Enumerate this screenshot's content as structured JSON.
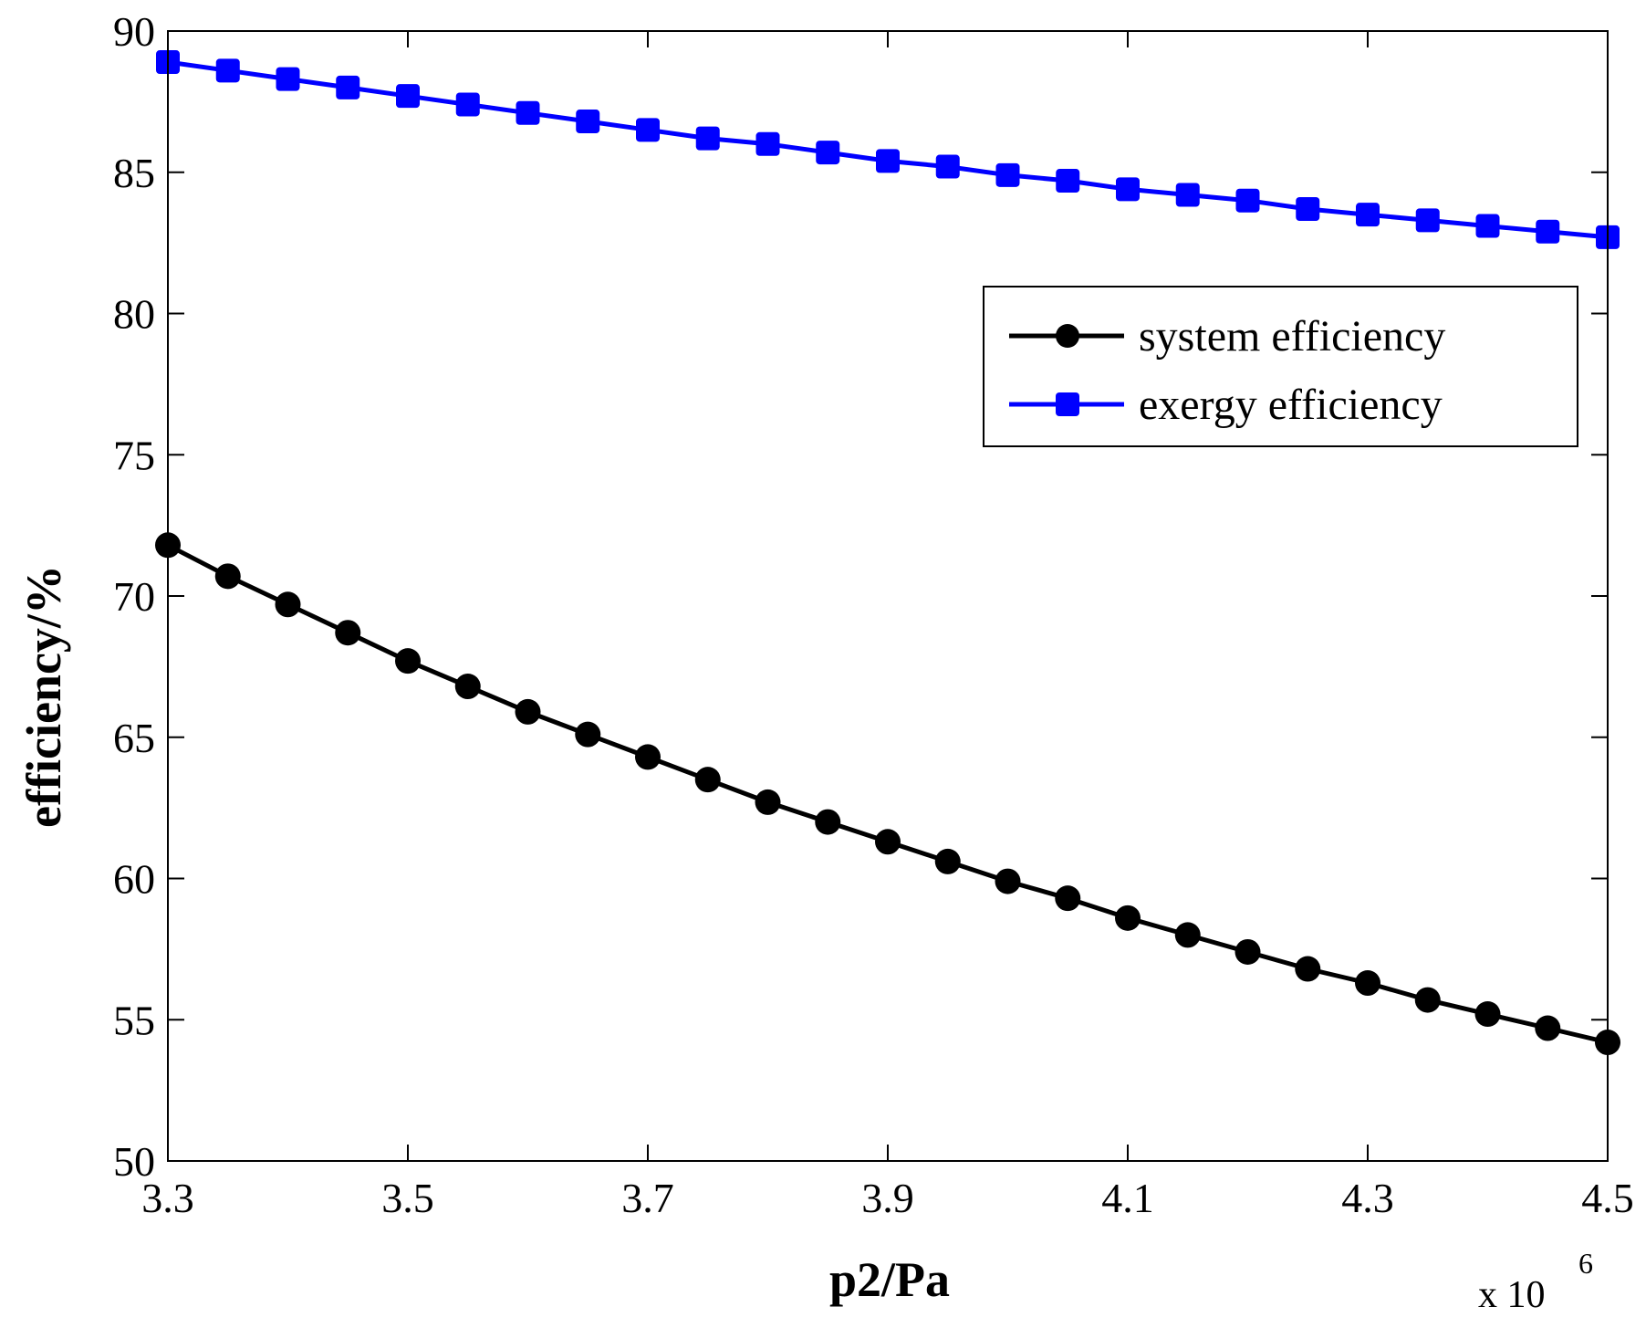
{
  "chart_data": {
    "type": "line",
    "title": "",
    "xlabel": "p2/Pa",
    "ylabel": "efficiency/%",
    "x_multiplier_label": "x 10",
    "x_multiplier_exponent": "6",
    "xlim": [
      3.3,
      4.5
    ],
    "ylim": [
      50,
      90
    ],
    "x_ticks": [
      3.3,
      3.5,
      3.7,
      3.9,
      4.1,
      4.3,
      4.5
    ],
    "x_tick_labels": [
      "3.3",
      "3.5",
      "3.7",
      "3.9",
      "4.1",
      "4.3",
      "4.5"
    ],
    "y_ticks": [
      50,
      55,
      60,
      65,
      70,
      75,
      80,
      85,
      90
    ],
    "y_tick_labels": [
      "50",
      "55",
      "60",
      "65",
      "70",
      "75",
      "80",
      "85",
      "90"
    ],
    "grid": false,
    "legend_position": "upper-right",
    "x": [
      3.3,
      3.35,
      3.4,
      3.45,
      3.5,
      3.55,
      3.6,
      3.65,
      3.7,
      3.75,
      3.8,
      3.85,
      3.9,
      3.95,
      4.0,
      4.05,
      4.1,
      4.15,
      4.2,
      4.25,
      4.3,
      4.35,
      4.4,
      4.45,
      4.5
    ],
    "series": [
      {
        "name": "system efficiency",
        "color": "#000000",
        "marker": "circle",
        "values": [
          71.8,
          70.7,
          69.7,
          68.7,
          67.7,
          66.8,
          65.9,
          65.1,
          64.3,
          63.5,
          62.7,
          62.0,
          61.3,
          60.6,
          59.9,
          59.3,
          58.6,
          58.0,
          57.4,
          56.8,
          56.3,
          55.7,
          55.2,
          54.7,
          54.2
        ]
      },
      {
        "name": "exergy efficiency",
        "color": "#0000ff",
        "marker": "square",
        "values": [
          88.9,
          88.6,
          88.3,
          88.0,
          87.7,
          87.4,
          87.1,
          86.8,
          86.5,
          86.2,
          86.0,
          85.7,
          85.4,
          85.2,
          84.9,
          84.7,
          84.4,
          84.2,
          84.0,
          83.7,
          83.5,
          83.3,
          83.1,
          82.9,
          82.7
        ]
      }
    ]
  }
}
